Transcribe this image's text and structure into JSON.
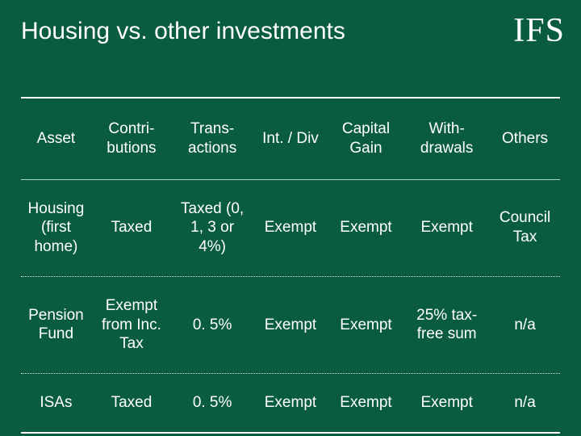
{
  "slide": {
    "title": "Housing vs. other investments",
    "logo_text": "IFS",
    "background_color": "#0a5c3e",
    "text_color": "#ffffff",
    "title_fontsize": 30,
    "cell_fontsize": 19
  },
  "table": {
    "type": "table",
    "column_widths_pct": [
      13,
      15,
      15,
      14,
      14,
      16,
      13
    ],
    "columns": [
      "Asset",
      "Contri-butions",
      "Trans-actions",
      "Int. / Div",
      "Capital Gain",
      "With-drawals",
      "Others"
    ],
    "rows": [
      [
        "Housing (first home)",
        "Taxed",
        "Taxed (0, 1, 3 or 4%)",
        "Exempt",
        "Exempt",
        "Exempt",
        "Council Tax"
      ],
      [
        "Pension Fund",
        "Exempt from Inc. Tax",
        "0. 5%",
        "Exempt",
        "Exempt",
        "25% tax-free sum",
        "n/a"
      ],
      [
        "ISAs",
        "Taxed",
        "0. 5%",
        "Exempt",
        "Exempt",
        "Exempt",
        "n/a"
      ]
    ],
    "borders": {
      "outer_top": "thick",
      "header_bottom": "thin",
      "row_sep": "dotted",
      "outer_bottom": "thick",
      "thick_color": "#ffffff",
      "thin_color": "rgba(255,255,255,0.7)",
      "dotted_color": "rgba(255,255,255,0.85)"
    }
  }
}
